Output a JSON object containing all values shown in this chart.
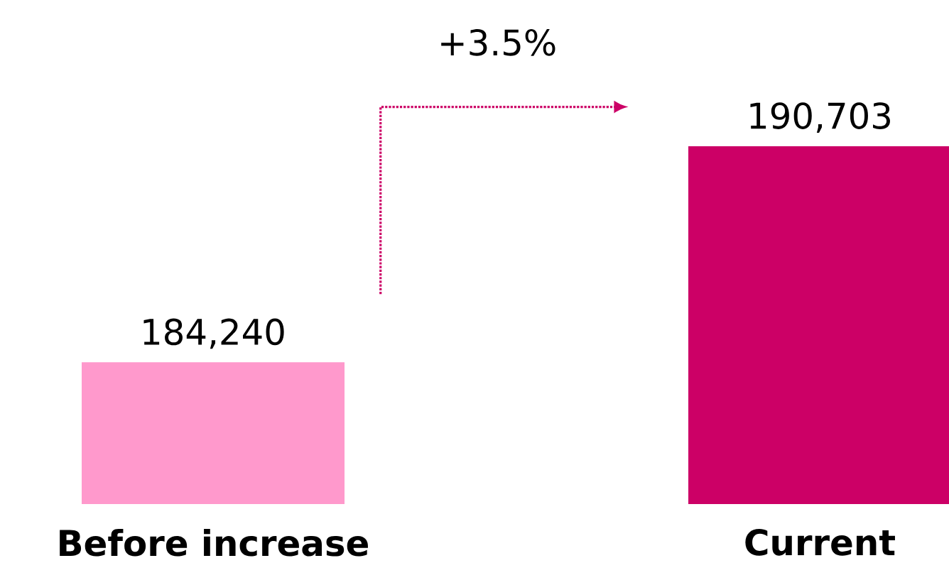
{
  "chart_data": {
    "type": "bar",
    "categories": [
      "Before increase",
      "Current"
    ],
    "values": [
      184240,
      190703
    ],
    "value_labels": [
      "184,240",
      "190,703"
    ],
    "colors": [
      "#ff99cc",
      "#cc0066"
    ],
    "ylim": [
      180000,
      190703
    ],
    "annotations": [
      "+3.5%"
    ]
  }
}
